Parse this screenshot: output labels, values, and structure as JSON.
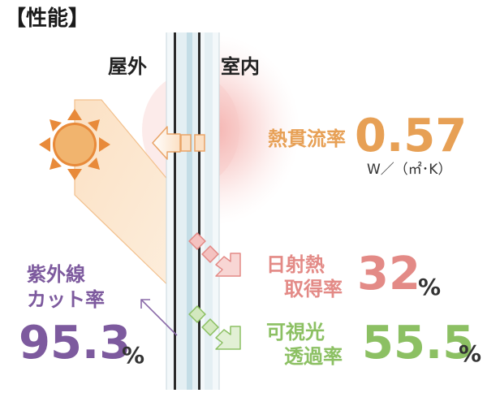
{
  "heading": "【性能】",
  "sides": {
    "outdoor": "屋外",
    "indoor": "室内"
  },
  "thermal": {
    "label": "熱貫流率",
    "value": "0.57",
    "unit": "W／（㎡･K）",
    "color": "#e7a055"
  },
  "solar": {
    "label_line1": "日射熱",
    "label_line2": "取得率",
    "value": "32",
    "unit": "%",
    "color": "#e38a86"
  },
  "visible": {
    "label_line1": "可視光",
    "label_line2": "透過率",
    "value": "55.5",
    "unit": "%",
    "color": "#8cc063"
  },
  "uv": {
    "label_line1": "紫外線",
    "label_line2": "カット率",
    "value": "95.3",
    "unit": "%",
    "color": "#7d5a9e"
  },
  "icons": [
    "sun-icon",
    "heat-arrow-left-icon",
    "solar-arrow-icon",
    "visible-light-arrow-icon",
    "uv-cut-arrow-icon"
  ]
}
